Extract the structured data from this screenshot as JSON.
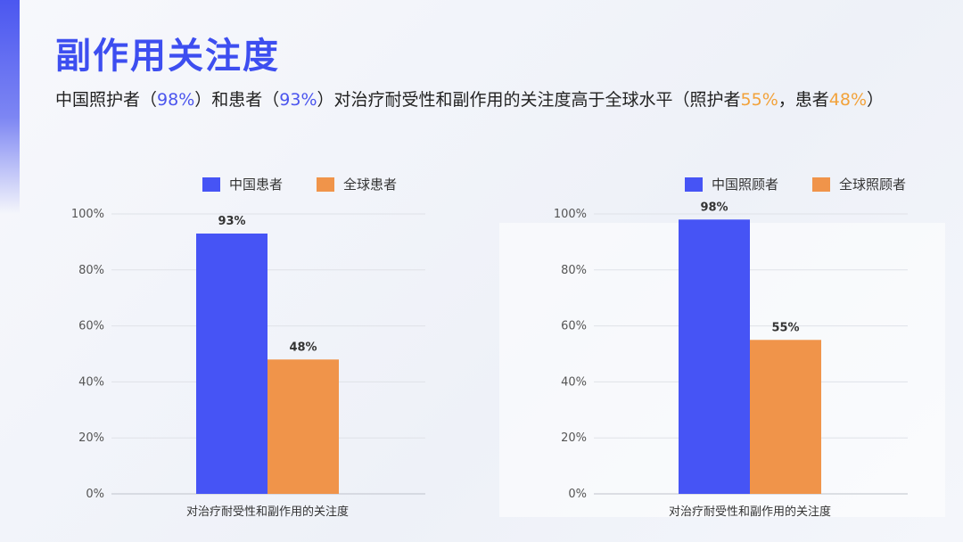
{
  "page": {
    "title": "副作用关注度",
    "subtitle": {
      "seg1": "中国照护者（",
      "v1": "98%",
      "seg2": "）和患者（",
      "v2": "93%",
      "seg3": "）对治疗耐受性和副作用的关注度高于全球水平（照护者",
      "v3": "55%",
      "seg4": "，患者",
      "v4": "48%",
      "seg5": "）"
    }
  },
  "colors": {
    "primary": "#4654f5",
    "secondary": "#f0944a",
    "title": "#3d4ef0",
    "highlight_orange": "#f2a23a"
  },
  "chart_data": [
    {
      "type": "bar",
      "categories": [
        "对治疗耐受性和副作用的关注度"
      ],
      "series": [
        {
          "name": "中国患者",
          "values": [
            93
          ],
          "labels": [
            "93%"
          ],
          "color": "#4654f5"
        },
        {
          "name": "全球患者",
          "values": [
            48
          ],
          "labels": [
            "48%"
          ],
          "color": "#f0944a"
        }
      ],
      "yticks": [
        "0%",
        "20%",
        "40%",
        "60%",
        "80%",
        "100%"
      ],
      "ylim": [
        0,
        100
      ],
      "grid": true,
      "legend": "top-center"
    },
    {
      "type": "bar",
      "categories": [
        "对治疗耐受性和副作用的关注度"
      ],
      "series": [
        {
          "name": "中国照顾者",
          "values": [
            98
          ],
          "labels": [
            "98%"
          ],
          "color": "#4654f5"
        },
        {
          "name": "全球照顾者",
          "values": [
            55
          ],
          "labels": [
            "55%"
          ],
          "color": "#f0944a"
        }
      ],
      "yticks": [
        "0%",
        "20%",
        "40%",
        "60%",
        "80%",
        "100%"
      ],
      "ylim": [
        0,
        100
      ],
      "grid": true,
      "legend": "top-right"
    }
  ]
}
